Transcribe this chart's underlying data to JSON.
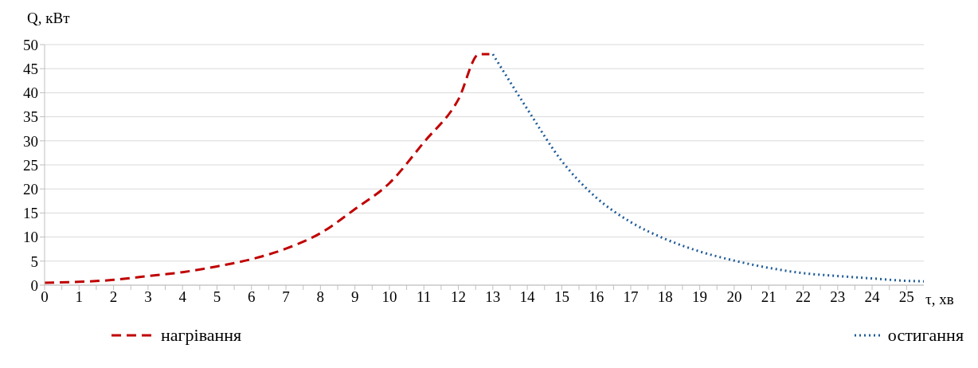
{
  "chart_data": {
    "type": "line",
    "ylabel": "Q, кВт",
    "xlabel": "τ, хв",
    "xlim": [
      0,
      25.5
    ],
    "ylim": [
      0,
      50
    ],
    "xticks": [
      0,
      {
        "value": 0.5,
        "label": null
      },
      1,
      {
        "value": 1.5,
        "label": null
      },
      2,
      {
        "value": 2.5,
        "label": null
      },
      3,
      {
        "value": 3.5,
        "label": null
      },
      4,
      {
        "value": 4.5,
        "label": null
      },
      5,
      {
        "value": 5.5,
        "label": null
      },
      6,
      {
        "value": 6.5,
        "label": null
      },
      7,
      {
        "value": 7.5,
        "label": null
      },
      8,
      {
        "value": 8.5,
        "label": null
      },
      9,
      {
        "value": 9.5,
        "label": null
      },
      10,
      {
        "value": 10.5,
        "label": null
      },
      11,
      {
        "value": 11.5,
        "label": null
      },
      12,
      {
        "value": 12.5,
        "label": null
      },
      13,
      {
        "value": 13.5,
        "label": null
      },
      14,
      {
        "value": 14.5,
        "label": null
      },
      15,
      {
        "value": 15.5,
        "label": null
      },
      16,
      {
        "value": 16.5,
        "label": null
      },
      17,
      {
        "value": 17.5,
        "label": null
      },
      18,
      {
        "value": 18.5,
        "label": null
      },
      19,
      {
        "value": 19.5,
        "label": null
      },
      20,
      {
        "value": 20.5,
        "label": null
      },
      21,
      {
        "value": 21.5,
        "label": null
      },
      22,
      {
        "value": 22.5,
        "label": null
      },
      23,
      {
        "value": 23.5,
        "label": null
      },
      24,
      {
        "value": 24.5,
        "label": null
      },
      25
    ],
    "yticks": [
      0,
      5,
      10,
      15,
      20,
      25,
      30,
      35,
      40,
      45,
      50
    ],
    "grid": "y",
    "legend": "bottom",
    "marker": "none",
    "series": [
      {
        "name": "нагрівання",
        "color": "#c00000",
        "line_style": "dashed",
        "x": [
          0,
          1,
          2,
          3,
          4,
          5,
          6,
          7,
          8,
          9,
          10,
          11,
          12,
          12.6,
          12.9
        ],
        "values": [
          0.5,
          0.7,
          1.1,
          1.9,
          2.7,
          3.9,
          5.4,
          7.6,
          10.8,
          15.8,
          21.2,
          29.7,
          38.6,
          48,
          48
        ]
      },
      {
        "name": "остигання",
        "color": "#1f5c99",
        "line_style": "dotted",
        "x": [
          13,
          14,
          15,
          16,
          17,
          18,
          19,
          20,
          21,
          22,
          23,
          24,
          25,
          25.5
        ],
        "values": [
          48,
          36.6,
          25.8,
          18.2,
          13.1,
          9.6,
          7.0,
          5.1,
          3.6,
          2.5,
          1.9,
          1.4,
          0.9,
          0.8
        ]
      }
    ]
  }
}
